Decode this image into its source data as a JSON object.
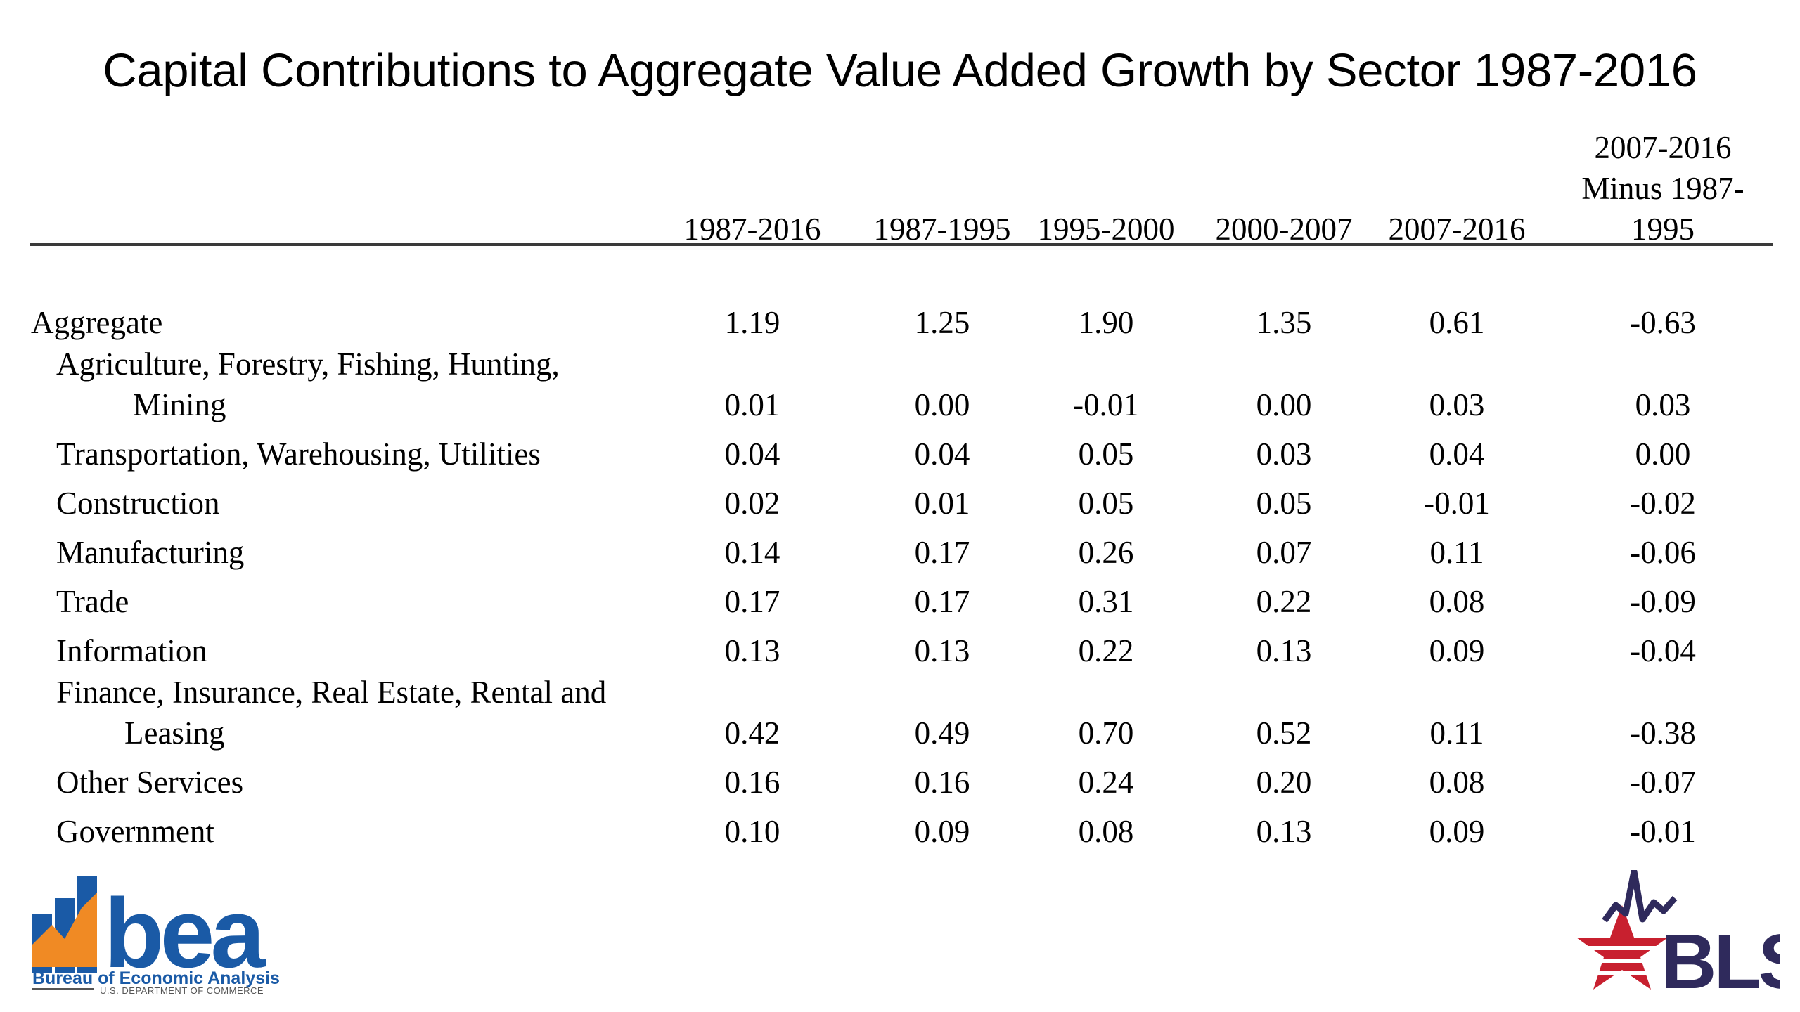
{
  "title": "Capital Contributions to Aggregate Value Added Growth by Sector 1987-2016",
  "columns": {
    "c1": "1987-2016",
    "c2": "1987-1995",
    "c3": "1995-2000",
    "c4": "2000-2007",
    "c5": "2007-2016",
    "c6_line1": "2007-2016",
    "c6_line2": "Minus 1987-",
    "c6_line3": "1995"
  },
  "rows": [
    {
      "label": "Aggregate",
      "values": [
        "1.19",
        "1.25",
        "1.90",
        "1.35",
        "0.61",
        "-0.63"
      ]
    },
    {
      "label_line1": "Agriculture, Forestry, Fishing, Hunting,",
      "label_line2": "Mining",
      "values": [
        "0.01",
        "0.00",
        "-0.01",
        "0.00",
        "0.03",
        "0.03"
      ]
    },
    {
      "label": "Transportation, Warehousing, Utilities",
      "values": [
        "0.04",
        "0.04",
        "0.05",
        "0.03",
        "0.04",
        "0.00"
      ]
    },
    {
      "label": "Construction",
      "values": [
        "0.02",
        "0.01",
        "0.05",
        "0.05",
        "-0.01",
        "-0.02"
      ]
    },
    {
      "label": "Manufacturing",
      "values": [
        "0.14",
        "0.17",
        "0.26",
        "0.07",
        "0.11",
        "-0.06"
      ]
    },
    {
      "label": "Trade",
      "values": [
        "0.17",
        "0.17",
        "0.31",
        "0.22",
        "0.08",
        "-0.09"
      ]
    },
    {
      "label": "Information",
      "values": [
        "0.13",
        "0.13",
        "0.22",
        "0.13",
        "0.09",
        "-0.04"
      ]
    },
    {
      "label_line1": "Finance, Insurance, Real Estate, Rental and",
      "label_line2": "Leasing",
      "values": [
        "0.42",
        "0.49",
        "0.70",
        "0.52",
        "0.11",
        "-0.38"
      ]
    },
    {
      "label": "Other Services",
      "values": [
        "0.16",
        "0.16",
        "0.24",
        "0.20",
        "0.08",
        "-0.07"
      ]
    },
    {
      "label": "Government",
      "values": [
        "0.10",
        "0.09",
        "0.08",
        "0.13",
        "0.09",
        "-0.01"
      ]
    }
  ],
  "logos": {
    "bea": {
      "wordmark": "bea",
      "name": "Bureau of Economic Analysis",
      "subtitle": "U.S. DEPARTMENT OF COMMERCE",
      "color_primary": "#1a5aa6",
      "color_accent": "#f08a24"
    },
    "bls": {
      "wordmark": "BLS",
      "color_primary": "#2f2a5c",
      "color_accent": "#c8202f"
    }
  }
}
